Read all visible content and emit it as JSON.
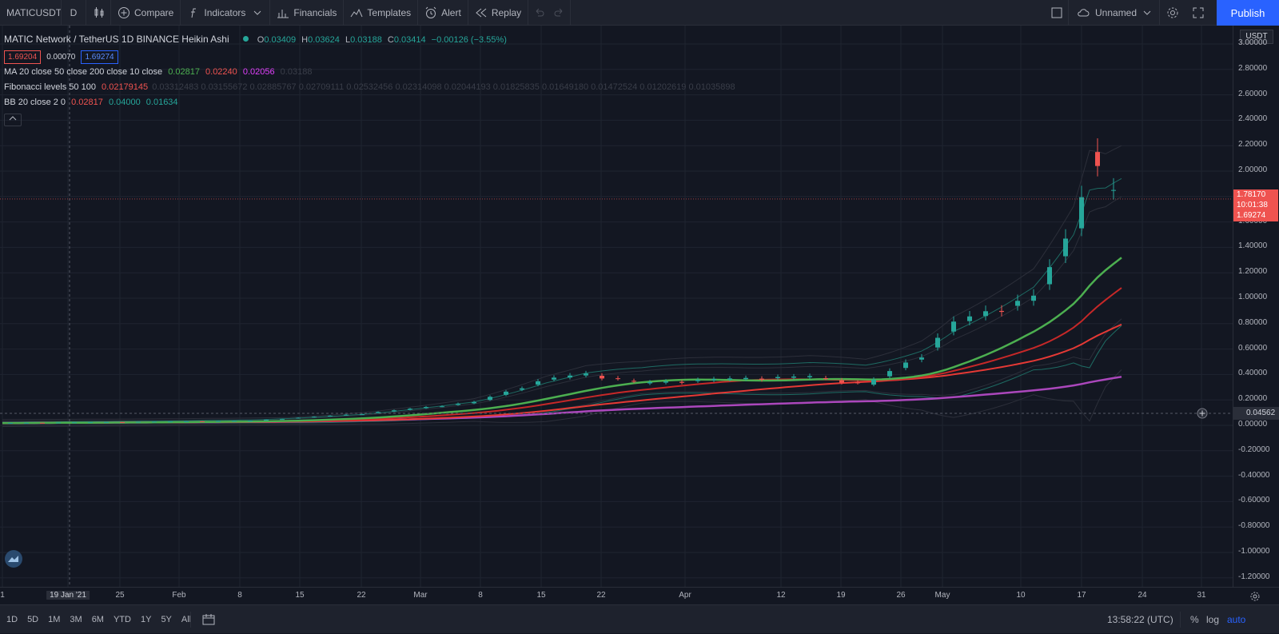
{
  "toolbar": {
    "symbol": "MATICUSDT",
    "interval": "D",
    "compare": "Compare",
    "indicators": "Indicators",
    "financials": "Financials",
    "templates": "Templates",
    "alert": "Alert",
    "replay": "Replay",
    "layout_name": "Unnamed",
    "publish": "Publish"
  },
  "legend": {
    "title": "MATIC Network / TetherUS  1D  BINANCE  Heikin Ashi",
    "ohlc": {
      "o_label": "O",
      "o": "0.03409",
      "h_label": "H",
      "h": "0.03624",
      "l_label": "L",
      "l": "0.03188",
      "c_label": "C",
      "c": "0.03414",
      "change": "−0.00126 (−3.55%)"
    },
    "bid": "1.69204",
    "spread": "0.00070",
    "ask": "1.69274",
    "ma": {
      "label": "MA 20 close 50 close 200 close 10 close",
      "v1": "0.02817",
      "v2": "0.02240",
      "v3": "0.02056",
      "v4": "0.03188"
    },
    "fib": {
      "label": "Fibonacci levels 50 100",
      "v1": "0.02179145",
      "rest": "0.03312483  0.03155672  0.02885767  0.02709111  0.02532456  0.02314098  0.02044193  0.01825835  0.01649180  0.01472524  0.01202619  0.01035898"
    },
    "bb": {
      "label": "BB 20 close 2 0",
      "v1": "0.02817",
      "v2": "0.04000",
      "v3": "0.01634"
    }
  },
  "price_axis": {
    "currency": "USDT",
    "ticks": [
      "3.00000",
      "2.80000",
      "2.60000",
      "2.40000",
      "2.20000",
      "2.00000",
      "1.80000",
      "1.60000",
      "1.40000",
      "1.20000",
      "1.00000",
      "0.80000",
      "0.60000",
      "0.40000",
      "0.20000",
      "0.00000",
      "-0.20000",
      "-0.40000",
      "-0.60000",
      "-0.80000",
      "-1.00000",
      "-1.20000"
    ],
    "last_price": "1.78170",
    "countdown": "10:01:38",
    "ask_tag": "1.69274",
    "crosshair_price": "0.04562"
  },
  "time_axis": {
    "labels": [
      "1",
      "19 Jan '21",
      "25",
      "Feb",
      "8",
      "15",
      "22",
      "Mar",
      "8",
      "15",
      "22",
      "Apr",
      "12",
      "19",
      "26",
      "May",
      "10",
      "17",
      "24",
      "31"
    ]
  },
  "bottom": {
    "ranges": [
      "1D",
      "5D",
      "1M",
      "3M",
      "6M",
      "YTD",
      "1Y",
      "5Y",
      "All"
    ],
    "clock": "13:58:22 (UTC)",
    "percent": "%",
    "log": "log",
    "auto": "auto"
  },
  "colors": {
    "up": "#26a69a",
    "down": "#ef5350",
    "ma20": "#4caf50",
    "ma50": "#e53935",
    "ma200": "#ab47bc",
    "accent": "#2962ff"
  },
  "chart_data": {
    "type": "candlestick",
    "y_scale_note": "linear",
    "ylim": [
      -1.2,
      3.0
    ],
    "x_range": [
      "2021-01-01",
      "2021-05-31"
    ],
    "candles_heikin_ashi_approx": [
      {
        "date": "2021-01-01",
        "close": 0.018
      },
      {
        "date": "2021-02-01",
        "close": 0.035
      },
      {
        "date": "2021-02-15",
        "close": 0.09
      },
      {
        "date": "2021-03-01",
        "close": 0.18
      },
      {
        "date": "2021-03-10",
        "close": 0.36
      },
      {
        "date": "2021-03-15",
        "close": 0.4
      },
      {
        "date": "2021-03-22",
        "close": 0.33
      },
      {
        "date": "2021-04-01",
        "close": 0.36
      },
      {
        "date": "2021-04-12",
        "close": 0.38
      },
      {
        "date": "2021-04-19",
        "close": 0.32
      },
      {
        "date": "2021-04-26",
        "close": 0.55
      },
      {
        "date": "2021-04-30",
        "close": 0.8
      },
      {
        "date": "2021-05-10",
        "close": 1.0
      },
      {
        "date": "2021-05-15",
        "close": 1.55
      },
      {
        "date": "2021-05-17",
        "close": 2.15
      },
      {
        "date": "2021-05-19",
        "close": 1.85
      },
      {
        "date": "2021-05-21",
        "close": 1.78
      }
    ]
  }
}
